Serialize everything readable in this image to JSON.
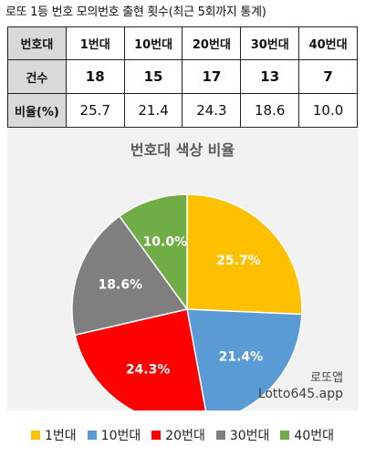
{
  "caption": "로또 1등 번호 모의번호 출현 횟수(최근 5회까지 통계)",
  "table": {
    "header": [
      "번호대",
      "1번대",
      "10번대",
      "20번대",
      "30번대",
      "40번대"
    ],
    "count_label": "건수",
    "counts": [
      "18",
      "15",
      "17",
      "13",
      "7"
    ],
    "ratio_label": "비율(%)",
    "ratios": [
      "25.7",
      "21.4",
      "24.3",
      "18.6",
      "10.0"
    ]
  },
  "chart_data": {
    "type": "pie",
    "title": "번호대 색상 비율",
    "categories": [
      "1번대",
      "10번대",
      "20번대",
      "30번대",
      "40번대"
    ],
    "values": [
      25.7,
      21.4,
      24.3,
      18.6,
      10.0
    ],
    "labels": [
      "25.7%",
      "21.4%",
      "24.3%",
      "18.6%",
      "10.0%"
    ],
    "colors": [
      "#ffc000",
      "#5b9bd5",
      "#ff0000",
      "#7f7f7f",
      "#70ad47"
    ],
    "legend_position": "bottom"
  },
  "watermark": {
    "line1": "로또앱",
    "line2": "Lotto645.app"
  }
}
